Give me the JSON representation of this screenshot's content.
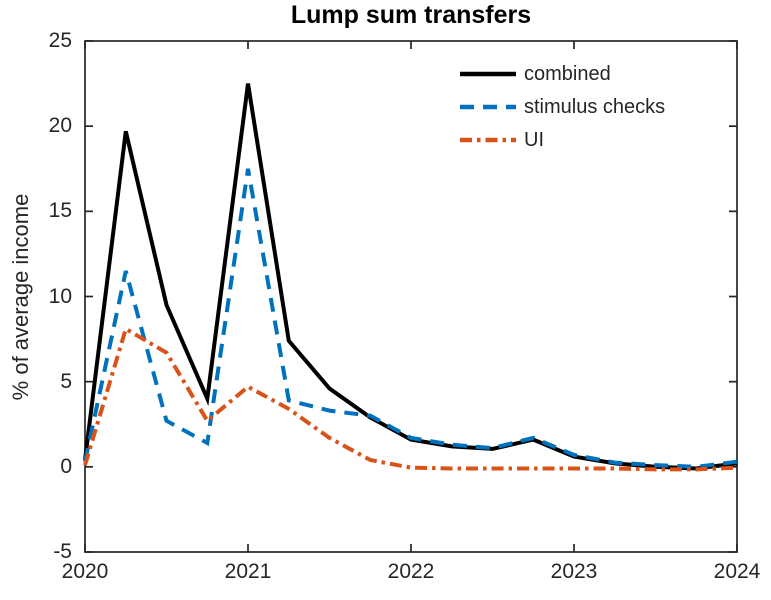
{
  "figure": {
    "title": "Lump sum transfers",
    "y_axis_label": "% of average income",
    "y_tick_labels": [
      "25",
      "20",
      "15",
      "10",
      "5",
      "0",
      "-5"
    ],
    "x_tick_labels": [
      "2020",
      "2021",
      "2022",
      "2023",
      "2024"
    ]
  },
  "legend": {
    "items": [
      {
        "label": "combined",
        "color": "#000000",
        "line_style": "solid"
      },
      {
        "label": "stimulus checks",
        "color": "#0072BD",
        "line_style": "dashed"
      },
      {
        "label": "UI",
        "color": "#D95319",
        "line_style": "dashdot"
      }
    ]
  },
  "colors": {
    "axis": "#262626",
    "background": "#ffffff",
    "title": "#000000"
  },
  "chart_data": {
    "type": "line",
    "title": "Lump sum transfers",
    "xlabel": "",
    "ylabel": "% of average income",
    "xlim": [
      2020,
      2024
    ],
    "ylim": [
      -5,
      25
    ],
    "xticks": [
      2020,
      2021,
      2022,
      2023,
      2024
    ],
    "yticks": [
      25,
      20,
      15,
      10,
      5,
      0,
      -5
    ],
    "grid": false,
    "legend_position": "inside top-right, no box",
    "x": [
      2020.0,
      2020.25,
      2020.5,
      2020.75,
      2021.0,
      2021.25,
      2021.5,
      2021.75,
      2022.0,
      2022.25,
      2022.5,
      2022.75,
      2023.0,
      2023.25,
      2023.5,
      2023.75,
      2024.0
    ],
    "series": [
      {
        "name": "combined",
        "color": "#000000",
        "line_style": "solid",
        "line_width": 4,
        "values": [
          0.4,
          19.7,
          9.5,
          4.0,
          22.5,
          7.4,
          4.6,
          2.9,
          1.6,
          1.2,
          1.05,
          1.6,
          0.6,
          0.2,
          0.0,
          -0.1,
          0.2
        ]
      },
      {
        "name": "stimulus checks",
        "color": "#0072BD",
        "line_style": "dashed",
        "line_width": 4,
        "values": [
          0.3,
          11.5,
          2.7,
          1.4,
          17.5,
          3.9,
          3.3,
          3.0,
          1.7,
          1.3,
          1.1,
          1.7,
          0.7,
          0.25,
          0.1,
          0.0,
          0.3
        ]
      },
      {
        "name": "UI",
        "color": "#D95319",
        "line_style": "dashdot",
        "line_width": 4,
        "values": [
          0.1,
          8.1,
          6.7,
          2.7,
          4.7,
          3.4,
          1.7,
          0.4,
          -0.05,
          -0.1,
          -0.1,
          -0.1,
          -0.1,
          -0.1,
          -0.15,
          -0.15,
          -0.05
        ]
      }
    ]
  }
}
